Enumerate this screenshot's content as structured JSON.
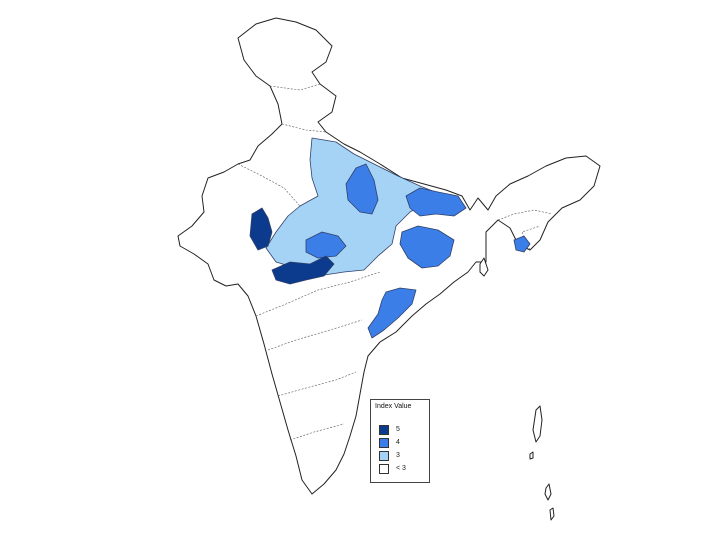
{
  "colors": {
    "level5": "#0c3a8c",
    "level4": "#3b7ee8",
    "level3": "#a5d3f5",
    "below3": "#ffffff"
  },
  "legend": {
    "title": "Index Value",
    "items": [
      {
        "label": "5",
        "color": "#0c3a8c"
      },
      {
        "label": "4",
        "color": "#3b7ee8"
      },
      {
        "label": "3",
        "color": "#a5d3f5"
      },
      {
        "label": "< 3",
        "color": "#ffffff"
      }
    ]
  }
}
